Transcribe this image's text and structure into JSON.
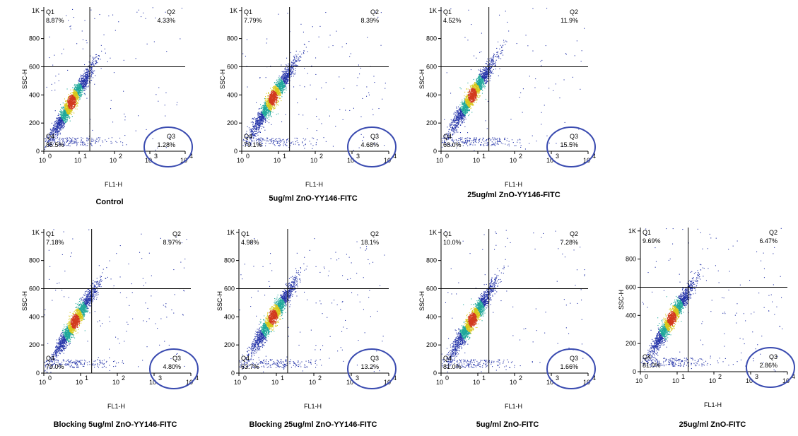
{
  "chart_data": [
    {
      "type": "scatter",
      "title": "Control",
      "xlabel": "FL1-H",
      "ylabel": "SSC-H",
      "x_scale": "log",
      "xlim": [
        1,
        10000
      ],
      "ylim": [
        0,
        1024
      ],
      "x_ticks": [
        "10",
        "10",
        "10",
        "10",
        "10"
      ],
      "x_tick_exponents": [
        "0",
        "1",
        "2",
        "3",
        "4"
      ],
      "y_ticks": [
        "0",
        "200",
        "400",
        "600",
        "800",
        "1K"
      ],
      "gate_x": 20,
      "gate_y": 600,
      "quadrants": [
        {
          "name": "Q1",
          "percent": "8.87%"
        },
        {
          "name": "Q2",
          "percent": "4.33%"
        },
        {
          "name": "Q3",
          "percent": "1.28%"
        },
        {
          "name": "Q4",
          "percent": "85.5%"
        }
      ],
      "density_center": {
        "x": 6,
        "y": 350
      },
      "q3_circled": true
    },
    {
      "type": "scatter",
      "title": "5ug/ml ZnO-YY146-FITC",
      "xlabel": "FL1-H",
      "ylabel": "SSC-H",
      "x_scale": "log",
      "xlim": [
        1,
        10000
      ],
      "ylim": [
        0,
        1024
      ],
      "x_ticks": [
        "10",
        "10",
        "10",
        "10",
        "10"
      ],
      "x_tick_exponents": [
        "0",
        "1",
        "2",
        "3",
        "4"
      ],
      "y_ticks": [
        "0",
        "200",
        "400",
        "600",
        "800",
        "1K"
      ],
      "gate_x": 20,
      "gate_y": 600,
      "quadrants": [
        {
          "name": "Q1",
          "percent": "7.79%"
        },
        {
          "name": "Q2",
          "percent": "8.39%"
        },
        {
          "name": "Q3",
          "percent": "4.68%"
        },
        {
          "name": "Q4",
          "percent": "79.1%"
        }
      ],
      "density_center": {
        "x": 7,
        "y": 380
      },
      "q3_circled": true
    },
    {
      "type": "scatter",
      "title": "25ug/ml ZnO-YY146-FITC",
      "xlabel": "FL1-H",
      "ylabel": "SSC-H",
      "x_scale": "log",
      "xlim": [
        1,
        10000
      ],
      "ylim": [
        0,
        1024
      ],
      "x_ticks": [
        "10",
        "10",
        "10",
        "10",
        "10"
      ],
      "x_tick_exponents": [
        "0",
        "1",
        "2",
        "3",
        "4"
      ],
      "y_ticks": [
        "0",
        "200",
        "400",
        "600",
        "800",
        "1K"
      ],
      "gate_x": 20,
      "gate_y": 600,
      "quadrants": [
        {
          "name": "Q1",
          "percent": "4.52%"
        },
        {
          "name": "Q2",
          "percent": "11.9%"
        },
        {
          "name": "Q3",
          "percent": "15.5%"
        },
        {
          "name": "Q4",
          "percent": "68.0%"
        }
      ],
      "density_center": {
        "x": 7,
        "y": 400
      },
      "q3_circled": true
    },
    {
      "type": "scatter",
      "title": "Blocking 5ug/ml ZnO-YY146-FITC",
      "xlabel": "FL1-H",
      "ylabel": "SSC-H",
      "x_scale": "log",
      "xlim": [
        1,
        10000
      ],
      "ylim": [
        0,
        1024
      ],
      "x_ticks": [
        "10",
        "10",
        "10",
        "10",
        "10"
      ],
      "x_tick_exponents": [
        "0",
        "1",
        "2",
        "3",
        "4"
      ],
      "y_ticks": [
        "0",
        "200",
        "400",
        "600",
        "800",
        "1K"
      ],
      "gate_x": 20,
      "gate_y": 600,
      "quadrants": [
        {
          "name": "Q1",
          "percent": "7.18%"
        },
        {
          "name": "Q2",
          "percent": "8.97%"
        },
        {
          "name": "Q3",
          "percent": "4.80%"
        },
        {
          "name": "Q4",
          "percent": "79.0%"
        }
      ],
      "density_center": {
        "x": 7,
        "y": 370
      },
      "q3_circled": true
    },
    {
      "type": "scatter",
      "title": "Blocking 25ug/ml ZnO-YY146-FITC",
      "xlabel": "FL1-H",
      "ylabel": "SSC-H",
      "x_scale": "log",
      "xlim": [
        1,
        10000
      ],
      "ylim": [
        0,
        1024
      ],
      "x_ticks": [
        "10",
        "10",
        "10",
        "10",
        "10"
      ],
      "x_tick_exponents": [
        "0",
        "1",
        "2",
        "3",
        "4"
      ],
      "y_ticks": [
        "0",
        "200",
        "400",
        "600",
        "800",
        "1K"
      ],
      "gate_x": 20,
      "gate_y": 600,
      "quadrants": [
        {
          "name": "Q1",
          "percent": "4.98%"
        },
        {
          "name": "Q2",
          "percent": "18.1%"
        },
        {
          "name": "Q3",
          "percent": "13.2%"
        },
        {
          "name": "Q4",
          "percent": "63.7%"
        }
      ],
      "density_center": {
        "x": 8,
        "y": 400
      },
      "q3_circled": true
    },
    {
      "type": "scatter",
      "title": "5ug/ml ZnO-FITC",
      "xlabel": "FL1-H",
      "ylabel": "SSC-H",
      "x_scale": "log",
      "xlim": [
        1,
        10000
      ],
      "ylim": [
        0,
        1024
      ],
      "x_ticks": [
        "10",
        "10",
        "10",
        "10",
        "10"
      ],
      "x_tick_exponents": [
        "0",
        "1",
        "2",
        "3",
        "4"
      ],
      "y_ticks": [
        "0",
        "200",
        "400",
        "600",
        "800",
        "1K"
      ],
      "gate_x": 20,
      "gate_y": 600,
      "quadrants": [
        {
          "name": "Q1",
          "percent": "10.0%"
        },
        {
          "name": "Q2",
          "percent": "7.28%"
        },
        {
          "name": "Q3",
          "percent": "1.66%"
        },
        {
          "name": "Q4",
          "percent": "81.0%"
        }
      ],
      "density_center": {
        "x": 7,
        "y": 380
      },
      "q3_circled": true
    },
    {
      "type": "scatter",
      "title": "25ug/ml ZnO-FITC",
      "xlabel": "FL1-H",
      "ylabel": "SSC-H",
      "x_scale": "log",
      "xlim": [
        1,
        10000
      ],
      "ylim": [
        0,
        1024
      ],
      "x_ticks": [
        "10",
        "10",
        "10",
        "10",
        "10"
      ],
      "x_tick_exponents": [
        "0",
        "1",
        "2",
        "3",
        "4"
      ],
      "y_ticks": [
        "0",
        "200",
        "400",
        "600",
        "800",
        "1K"
      ],
      "gate_x": 20,
      "gate_y": 600,
      "quadrants": [
        {
          "name": "Q1",
          "percent": "9.69%"
        },
        {
          "name": "Q2",
          "percent": "6.47%"
        },
        {
          "name": "Q3",
          "percent": "2.86%"
        },
        {
          "name": "Q4",
          "percent": "81.0%"
        }
      ],
      "density_center": {
        "x": 7,
        "y": 380
      },
      "q3_circled": true
    }
  ],
  "colors": {
    "circle": "#3a4bb0",
    "density_low": "#2433a8",
    "density_mid": "#1fa89a",
    "density_high": "#d8c81a",
    "density_peak": "#d23a1e"
  }
}
